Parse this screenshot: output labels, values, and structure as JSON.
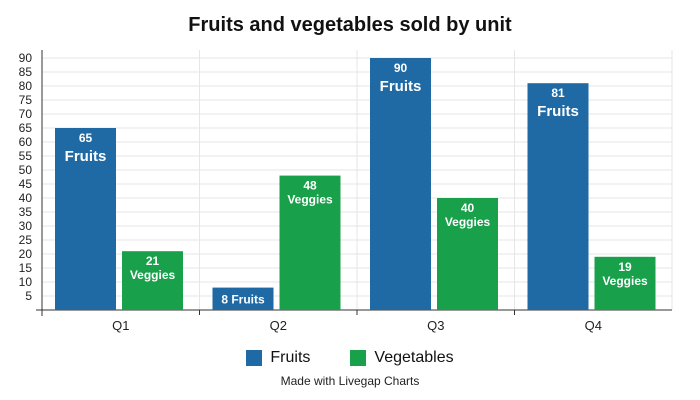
{
  "chart_data": {
    "type": "bar",
    "title": "Fruits and vegetables sold by unit",
    "categories": [
      "Q1",
      "Q2",
      "Q3",
      "Q4"
    ],
    "series": [
      {
        "name": "Fruits",
        "color": "#1f6aa5",
        "values": [
          65,
          8,
          90,
          81
        ],
        "data_labels": [
          [
            "65",
            "Fruits"
          ],
          [
            "8 Fruits"
          ],
          [
            "90",
            "Fruits"
          ],
          [
            "81",
            "Fruits"
          ]
        ]
      },
      {
        "name": "Vegetables",
        "color": "#18a04a",
        "values": [
          21,
          48,
          40,
          19
        ],
        "data_labels": [
          [
            "21",
            "Veggies"
          ],
          [
            "48",
            "Veggies"
          ],
          [
            "40",
            "Veggies"
          ],
          [
            "19",
            "Veggies"
          ]
        ]
      }
    ],
    "yticks": [
      5,
      10,
      15,
      20,
      25,
      30,
      35,
      40,
      45,
      50,
      55,
      60,
      65,
      70,
      75,
      80,
      85,
      90
    ],
    "ylim": [
      0,
      90
    ],
    "grid": true,
    "legend_position": "bottom"
  },
  "footer": {
    "credit": "Made with Livegap Charts"
  }
}
